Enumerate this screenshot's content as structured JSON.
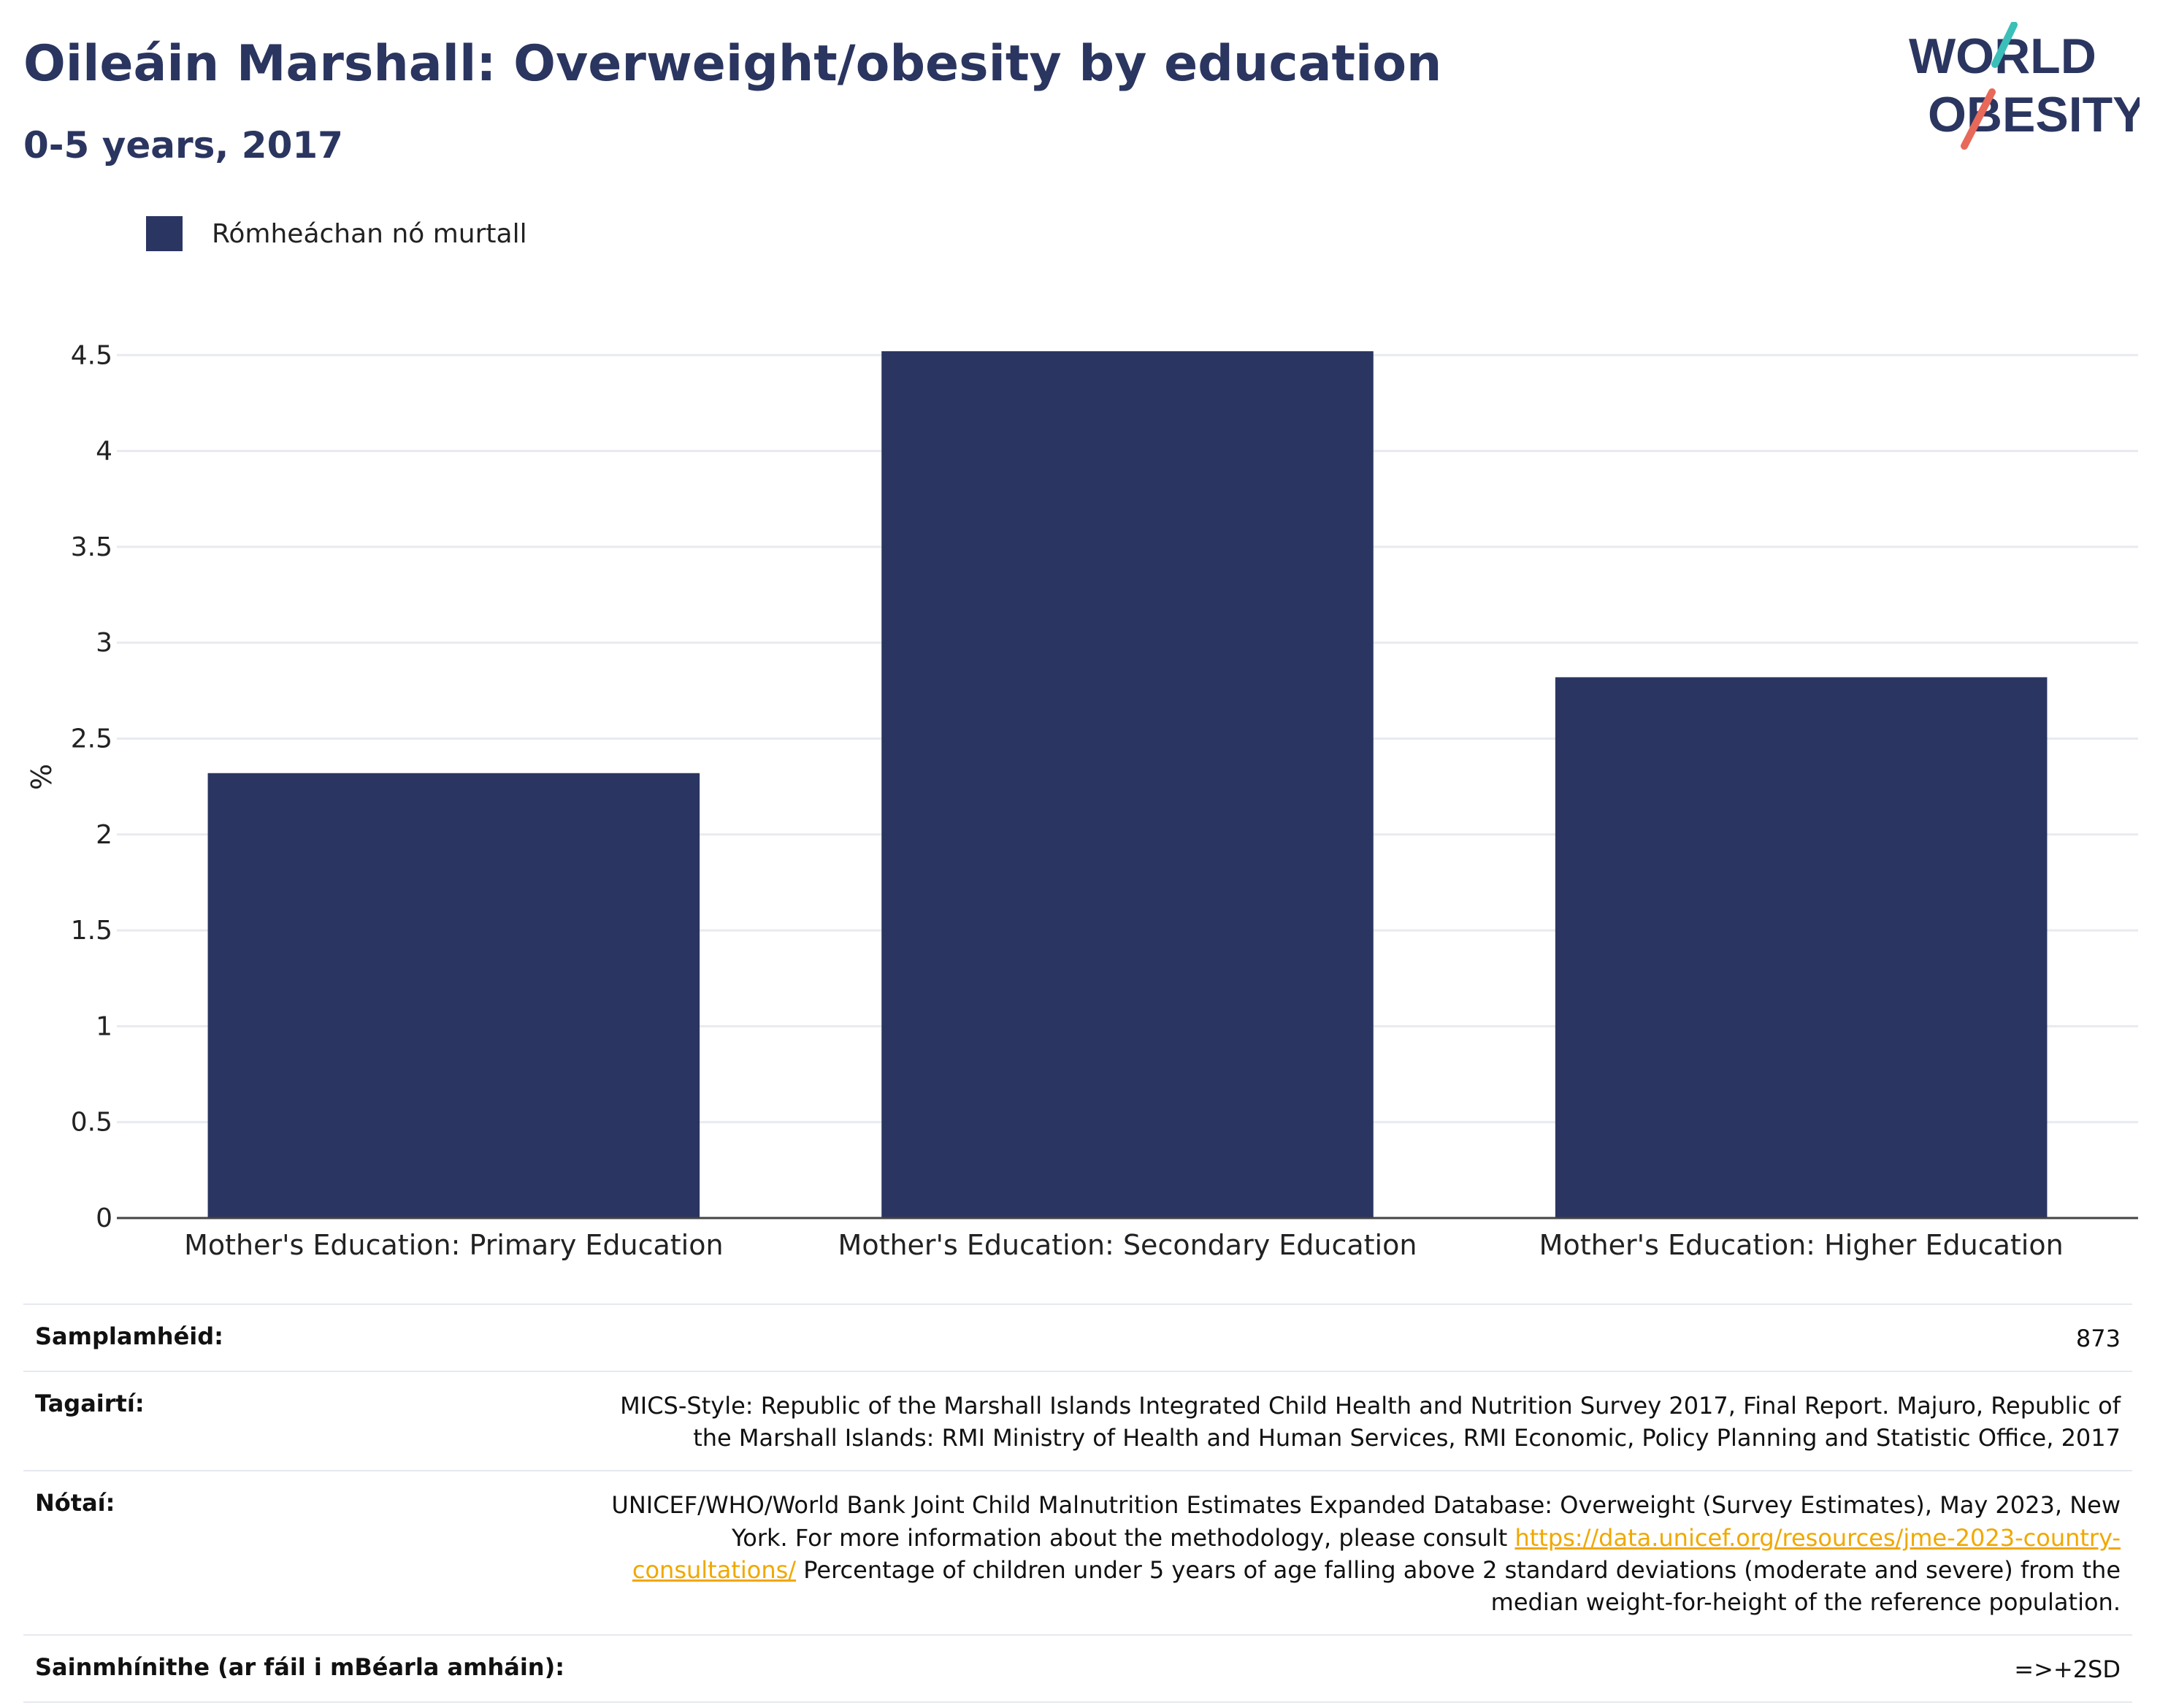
{
  "title": "Oileáin Marshall: Overweight/obesity by education",
  "subtitle": "0-5 years, 2017",
  "logo": {
    "line1": "WORLD",
    "line2": "OBESITY",
    "accent_teal": "#3bbfb8",
    "accent_red": "#e8685a"
  },
  "legend": {
    "label": "Rómheáchan nó murtall",
    "color": "#2a3562"
  },
  "chart_data": {
    "type": "bar",
    "categories": [
      "Mother's Education: Primary Education",
      "Mother's Education: Secondary Education",
      "Mother's Education: Higher Education"
    ],
    "series": [
      {
        "name": "Rómheáchan nó murtall",
        "values": [
          2.32,
          4.52,
          2.82
        ],
        "color": "#2a3562"
      }
    ],
    "ylabel": "%",
    "xlabel": "",
    "ylim": [
      0,
      4.6
    ],
    "yticks": [
      0,
      0.5,
      1,
      1.5,
      2,
      2.5,
      3,
      3.5,
      4,
      4.5
    ],
    "ytick_labels": [
      "0",
      "0.5",
      "1",
      "1.5",
      "2",
      "2.5",
      "3",
      "3.5",
      "4",
      "4.5"
    ],
    "grid": true
  },
  "info": {
    "sample_size": {
      "label": "Samplamhéid:",
      "value": "873"
    },
    "references": {
      "label": "Tagairtí:",
      "value": "MICS-Style: Republic of the Marshall Islands Integrated Child Health and Nutrition Survey 2017, Final Report. Majuro, Republic of the Marshall Islands: RMI Ministry of Health and Human Services, RMI Economic, Policy Planning and Statistic Office, 2017"
    },
    "notes": {
      "label": "Nótaí:",
      "text_before": "UNICEF/WHO/World Bank Joint Child Malnutrition Estimates Expanded Database: Overweight (Survey Estimates), May 2023, New York. For more information about the methodology, please consult ",
      "link": "https://data.unicef.org/resources/jme-2023-country-consultations/",
      "text_after": " Percentage of children under 5 years of age falling above 2 standard deviations (moderate and severe) from the median weight-for-height of the reference population."
    },
    "definitions": {
      "label": "Sainmhínithe (ar fáil i mBéarla amháin):",
      "value": "=>+2SD"
    }
  }
}
